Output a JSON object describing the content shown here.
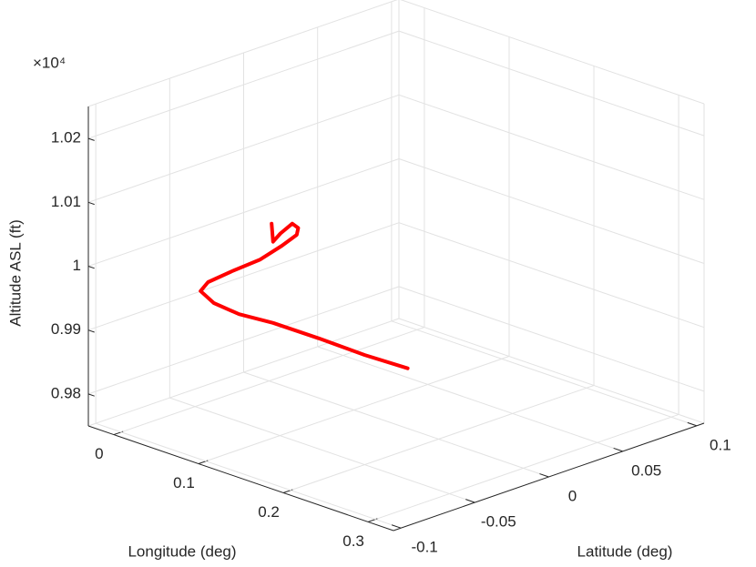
{
  "chart_data": {
    "type": "line3d",
    "xlabel": "Longitude (deg)",
    "ylabel": "Latitude (deg)",
    "zlabel": "Altitude ASL (ft)",
    "z_exponent_label": "×10⁴",
    "xlim": [
      -0.03,
      0.33
    ],
    "ylim": [
      -0.105,
      0.105
    ],
    "zlim": [
      9750,
      10250
    ],
    "xticks": [
      0,
      0.1,
      0.2,
      0.3
    ],
    "yticks": [
      -0.1,
      -0.05,
      0,
      0.05,
      0.1
    ],
    "zticks": [
      {
        "value": 9800,
        "label": "0.98"
      },
      {
        "value": 9900,
        "label": "0.99"
      },
      {
        "value": 10000,
        "label": "1"
      },
      {
        "value": 10100,
        "label": "1.01"
      },
      {
        "value": 10200,
        "label": "1.02"
      }
    ],
    "grid": true,
    "series": [
      {
        "color": "#ff0000",
        "x": [
          0.078,
          0.078,
          0.078,
          0.078,
          0.078,
          0.078,
          0.078,
          0.078,
          0.078,
          0.078,
          0.078,
          0.078,
          0.078,
          0.078,
          0.078,
          0.078,
          0.078
        ],
        "y": [
          0.049,
          0.02,
          -0.011,
          -0.042,
          -0.065,
          -0.082,
          -0.091,
          -0.086,
          -0.07,
          -0.051,
          -0.036,
          -0.026,
          -0.025,
          -0.029,
          -0.037,
          -0.042,
          -0.043
        ],
        "z": [
          9766,
          9810,
          9861,
          9910,
          9942,
          9973,
          9999,
          10009,
          10013,
          10016,
          10026,
          10035,
          10045,
          10055,
          10046,
          10037,
          10066
        ]
      }
    ]
  }
}
